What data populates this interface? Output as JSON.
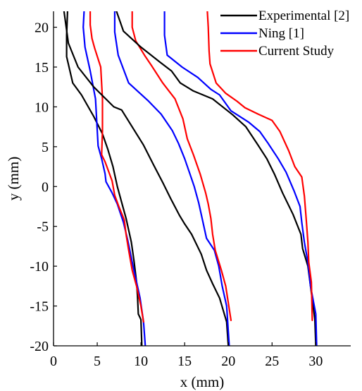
{
  "chart_data": {
    "type": "line",
    "xlabel": "x (mm)",
    "ylabel": "y (mm)",
    "xlim": [
      0,
      34
    ],
    "ylim": [
      -20,
      22
    ],
    "xticks": [
      0,
      5,
      10,
      15,
      20,
      25,
      30
    ],
    "yticks": [
      -20,
      -15,
      -10,
      -5,
      0,
      5,
      10,
      15,
      20
    ],
    "grid": false,
    "legend_position": "top-right",
    "legend": [
      {
        "label": "Experimental [2]",
        "color": "#000000"
      },
      {
        "label": "Ning [1]",
        "color": "#0000ff"
      },
      {
        "label": "Current Study",
        "color": "#ff0000"
      }
    ],
    "series": [
      {
        "group": 0,
        "color": "#000000",
        "points": [
          [
            1.6,
            22
          ],
          [
            1.5,
            19
          ],
          [
            1.5,
            16.3
          ],
          [
            2.2,
            13
          ],
          [
            3.2,
            11.5
          ],
          [
            4.6,
            8.8
          ],
          [
            5.6,
            6.6
          ],
          [
            6.2,
            4.7
          ],
          [
            6.8,
            2.5
          ],
          [
            7.3,
            0
          ],
          [
            7.8,
            -2
          ],
          [
            8.3,
            -4
          ],
          [
            8.9,
            -7
          ],
          [
            9.2,
            -9.3
          ],
          [
            9.5,
            -12
          ],
          [
            9.6,
            -13.7
          ],
          [
            9.7,
            -16
          ],
          [
            10,
            -16.7
          ],
          [
            10.1,
            -20
          ]
        ]
      },
      {
        "group": 0,
        "color": "#0000ff",
        "points": [
          [
            3.5,
            22
          ],
          [
            3.4,
            20
          ],
          [
            3.6,
            17.5
          ],
          [
            4.2,
            14.5
          ],
          [
            4.8,
            11
          ],
          [
            5,
            7
          ],
          [
            5.1,
            5.1
          ],
          [
            5.5,
            3.5
          ],
          [
            5.9,
            1.6
          ],
          [
            6,
            0.6
          ],
          [
            6.7,
            -0.8
          ],
          [
            7.3,
            -2.2
          ],
          [
            8,
            -4.5
          ],
          [
            8.5,
            -6.8
          ],
          [
            9.1,
            -10
          ],
          [
            9.5,
            -12
          ],
          [
            9.9,
            -14
          ],
          [
            10.3,
            -17
          ],
          [
            10.5,
            -20
          ]
        ]
      },
      {
        "group": 0,
        "color": "#ff0000",
        "points": [
          [
            4.2,
            22
          ],
          [
            4.2,
            20.3
          ],
          [
            4.4,
            18.6
          ],
          [
            4.7,
            17.4
          ],
          [
            5.4,
            15
          ],
          [
            5.6,
            11
          ],
          [
            5.6,
            7
          ],
          [
            5.5,
            4
          ],
          [
            5.9,
            3.1
          ],
          [
            6.7,
            0.7
          ],
          [
            7,
            -1.1
          ],
          [
            7.5,
            -2.6
          ],
          [
            8.1,
            -4.2
          ],
          [
            8.3,
            -6
          ],
          [
            8.6,
            -8
          ],
          [
            9,
            -10.5
          ],
          [
            9.5,
            -12.5
          ],
          [
            10,
            -15
          ],
          [
            10.3,
            -17
          ]
        ]
      },
      {
        "group": 1,
        "color": "#000000",
        "points": [
          [
            1.2,
            22
          ],
          [
            1.7,
            18
          ],
          [
            2.8,
            15
          ],
          [
            4.6,
            12.5
          ],
          [
            6.9,
            10
          ],
          [
            7.8,
            9.6
          ],
          [
            10.3,
            5.2
          ],
          [
            11.5,
            2.6
          ],
          [
            12.5,
            0.5
          ],
          [
            13.4,
            -1.5
          ],
          [
            14.4,
            -3.6
          ],
          [
            15,
            -4.7
          ],
          [
            15.8,
            -6
          ],
          [
            16.9,
            -8.5
          ],
          [
            17.5,
            -10.5
          ],
          [
            18.2,
            -12.2
          ],
          [
            19,
            -14
          ],
          [
            19.8,
            -17
          ],
          [
            20,
            -20
          ]
        ]
      },
      {
        "group": 1,
        "color": "#0000ff",
        "points": [
          [
            7,
            22
          ],
          [
            7,
            19.4
          ],
          [
            7.4,
            16.5
          ],
          [
            8.6,
            13
          ],
          [
            10.8,
            10.8
          ],
          [
            12.3,
            9.1
          ],
          [
            13.6,
            7
          ],
          [
            14.3,
            5.4
          ],
          [
            15,
            3.5
          ],
          [
            15.6,
            1.6
          ],
          [
            16.1,
            0
          ],
          [
            16.6,
            -2
          ],
          [
            17,
            -4
          ],
          [
            17.5,
            -6.5
          ],
          [
            18.4,
            -8
          ],
          [
            18.9,
            -10
          ],
          [
            19.3,
            -12.5
          ],
          [
            19.8,
            -15
          ],
          [
            20.1,
            -20
          ]
        ]
      },
      {
        "group": 1,
        "color": "#ff0000",
        "points": [
          [
            9,
            22
          ],
          [
            9,
            20
          ],
          [
            9.4,
            18.3
          ],
          [
            10.4,
            16.5
          ],
          [
            11.2,
            15.2
          ],
          [
            12.5,
            13
          ],
          [
            13.9,
            11
          ],
          [
            14.8,
            8.5
          ],
          [
            15.3,
            6
          ],
          [
            16,
            4
          ],
          [
            16.8,
            1.5
          ],
          [
            17.4,
            -0.8
          ],
          [
            17.7,
            -2.2
          ],
          [
            18,
            -4
          ],
          [
            18.2,
            -6
          ],
          [
            18.5,
            -8
          ],
          [
            19.2,
            -10.5
          ],
          [
            19.7,
            -12.5
          ],
          [
            20.3,
            -16.8
          ]
        ]
      },
      {
        "group": 2,
        "color": "#000000",
        "points": [
          [
            7.2,
            22
          ],
          [
            8,
            19.5
          ],
          [
            10,
            17.5
          ],
          [
            12.2,
            15.6
          ],
          [
            13.5,
            14.5
          ],
          [
            14.5,
            13
          ],
          [
            16,
            12
          ],
          [
            18.2,
            11
          ],
          [
            20.5,
            9
          ],
          [
            22,
            7.5
          ],
          [
            23.4,
            5.2
          ],
          [
            24.4,
            3.5
          ],
          [
            25.3,
            1.5
          ],
          [
            26.2,
            -0.8
          ],
          [
            27.4,
            -3.5
          ],
          [
            28.3,
            -6
          ],
          [
            28.5,
            -7.8
          ],
          [
            29.1,
            -10
          ],
          [
            29.4,
            -12.5
          ],
          [
            29.9,
            -16.7
          ],
          [
            30,
            -20
          ]
        ]
      },
      {
        "group": 2,
        "color": "#0000ff",
        "points": [
          [
            12.7,
            22
          ],
          [
            12.7,
            19
          ],
          [
            13,
            16.5
          ],
          [
            14.7,
            15
          ],
          [
            16.5,
            13.7
          ],
          [
            18,
            12.2
          ],
          [
            19,
            11.5
          ],
          [
            20.3,
            9.5
          ],
          [
            22.3,
            8.1
          ],
          [
            23.6,
            6.9
          ],
          [
            24.5,
            5.5
          ],
          [
            25.7,
            3.5
          ],
          [
            26.6,
            1.8
          ],
          [
            27.5,
            -0.5
          ],
          [
            28.2,
            -2.5
          ],
          [
            28.4,
            -4.5
          ],
          [
            28.7,
            -7
          ],
          [
            29.1,
            -9.5
          ],
          [
            29.4,
            -12.5
          ],
          [
            30,
            -16
          ],
          [
            30.1,
            -20
          ]
        ]
      },
      {
        "group": 2,
        "color": "#ff0000",
        "points": [
          [
            17.6,
            22
          ],
          [
            17.7,
            20
          ],
          [
            17.8,
            17
          ],
          [
            17.9,
            15.4
          ],
          [
            18.6,
            13
          ],
          [
            19.7,
            11.7
          ],
          [
            21,
            10.7
          ],
          [
            21.9,
            9.9
          ],
          [
            23.4,
            9.1
          ],
          [
            25,
            8.3
          ],
          [
            25.9,
            6.9
          ],
          [
            26.9,
            4.5
          ],
          [
            27.6,
            2.5
          ],
          [
            28.4,
            1.2
          ],
          [
            28.7,
            -1.2
          ],
          [
            28.9,
            -4
          ],
          [
            29.1,
            -7
          ],
          [
            29.2,
            -9.5
          ],
          [
            29.5,
            -12
          ],
          [
            29.6,
            -16.8
          ]
        ]
      }
    ]
  }
}
